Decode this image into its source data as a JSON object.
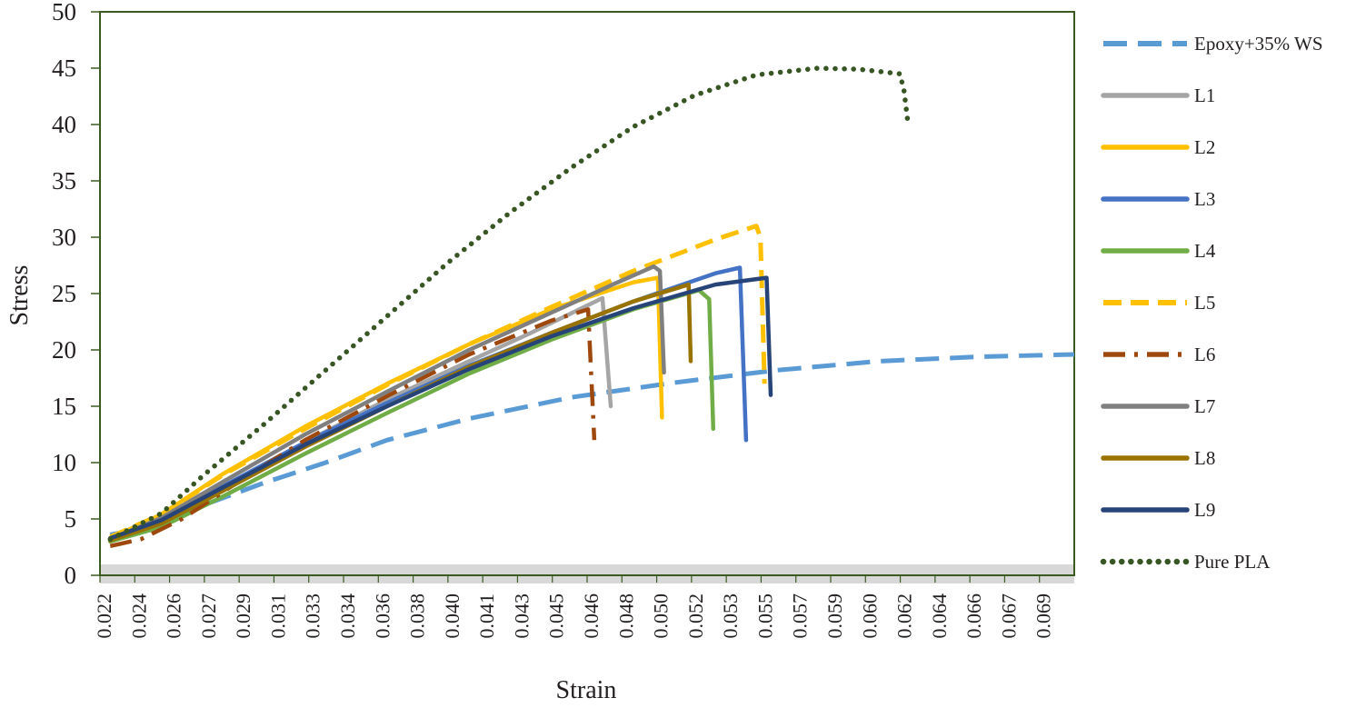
{
  "chart_data": {
    "type": "line",
    "title": "",
    "xlabel": "Strain",
    "ylabel": "Stress",
    "xlim": [
      0.022,
      0.0695
    ],
    "ylim": [
      0,
      50
    ],
    "y_ticks": [
      "0",
      "5",
      "10",
      "15",
      "20",
      "25",
      "30",
      "35",
      "40",
      "45",
      "50"
    ],
    "x_ticks": [
      "0.022",
      "0.024",
      "0.026",
      "0.027",
      "0.029",
      "0.031",
      "0.033",
      "0.034",
      "0.036",
      "0.038",
      "0.040",
      "0.041",
      "0.043",
      "0.045",
      "0.046",
      "0.048",
      "0.050",
      "0.052",
      "0.053",
      "0.055",
      "0.057",
      "0.059",
      "0.060",
      "0.062",
      "0.064",
      "0.066",
      "0.067",
      "0.069"
    ],
    "grid": false,
    "legend_position": "right",
    "colors": {
      "frame": "#3a5a1f",
      "baseline_band": "#d8d8d8",
      "text": "#231f20"
    },
    "series": [
      {
        "name": "Epoxy+35% WS",
        "color": "#5b9bd5",
        "style": "long-dash",
        "points": [
          [
            0.0225,
            3.6
          ],
          [
            0.025,
            4.5
          ],
          [
            0.027,
            6.2
          ],
          [
            0.03,
            8.2
          ],
          [
            0.033,
            10.0
          ],
          [
            0.036,
            12.0
          ],
          [
            0.04,
            13.9
          ],
          [
            0.045,
            15.8
          ],
          [
            0.05,
            17.1
          ],
          [
            0.055,
            18.2
          ],
          [
            0.06,
            19.0
          ],
          [
            0.065,
            19.4
          ],
          [
            0.0695,
            19.6
          ]
        ]
      },
      {
        "name": "L1",
        "color": "#a5a5a5",
        "style": "solid",
        "points": [
          [
            0.0225,
            3.2
          ],
          [
            0.025,
            4.8
          ],
          [
            0.028,
            7.8
          ],
          [
            0.032,
            11.8
          ],
          [
            0.036,
            15.6
          ],
          [
            0.04,
            19.0
          ],
          [
            0.043,
            21.5
          ],
          [
            0.0465,
            24.6
          ],
          [
            0.0469,
            15.0
          ]
        ]
      },
      {
        "name": "L2",
        "color": "#ffc000",
        "style": "solid",
        "points": [
          [
            0.0225,
            3.3
          ],
          [
            0.025,
            5.4
          ],
          [
            0.028,
            9.0
          ],
          [
            0.032,
            13.2
          ],
          [
            0.036,
            17.0
          ],
          [
            0.04,
            20.5
          ],
          [
            0.044,
            23.6
          ],
          [
            0.048,
            26.0
          ],
          [
            0.0492,
            26.4
          ],
          [
            0.0494,
            14.0
          ]
        ]
      },
      {
        "name": "L3",
        "color": "#4472c4",
        "style": "solid",
        "points": [
          [
            0.0225,
            3.3
          ],
          [
            0.025,
            4.9
          ],
          [
            0.028,
            7.9
          ],
          [
            0.032,
            11.8
          ],
          [
            0.036,
            15.3
          ],
          [
            0.04,
            18.6
          ],
          [
            0.044,
            21.5
          ],
          [
            0.048,
            24.3
          ],
          [
            0.052,
            26.8
          ],
          [
            0.0532,
            27.3
          ],
          [
            0.0535,
            12.0
          ]
        ]
      },
      {
        "name": "L4",
        "color": "#70ad47",
        "style": "solid",
        "points": [
          [
            0.0225,
            3.0
          ],
          [
            0.025,
            4.3
          ],
          [
            0.028,
            7.0
          ],
          [
            0.032,
            10.8
          ],
          [
            0.036,
            14.4
          ],
          [
            0.04,
            17.9
          ],
          [
            0.044,
            20.9
          ],
          [
            0.048,
            23.6
          ],
          [
            0.0512,
            25.3
          ],
          [
            0.0517,
            24.5
          ],
          [
            0.0519,
            13.0
          ]
        ]
      },
      {
        "name": "L5",
        "color": "#ffc000",
        "style": "dash",
        "points": [
          [
            0.0225,
            3.4
          ],
          [
            0.025,
            5.4
          ],
          [
            0.028,
            8.9
          ],
          [
            0.032,
            13.0
          ],
          [
            0.036,
            16.9
          ],
          [
            0.04,
            20.5
          ],
          [
            0.044,
            23.8
          ],
          [
            0.048,
            27.0
          ],
          [
            0.052,
            29.8
          ],
          [
            0.054,
            31.0
          ],
          [
            0.0542,
            30.0
          ],
          [
            0.0544,
            17.0
          ]
        ]
      },
      {
        "name": "L6",
        "color": "#9e480e",
        "style": "dash-dot",
        "points": [
          [
            0.0225,
            2.6
          ],
          [
            0.024,
            3.2
          ],
          [
            0.026,
            5.0
          ],
          [
            0.029,
            8.6
          ],
          [
            0.032,
            12.0
          ],
          [
            0.036,
            15.9
          ],
          [
            0.04,
            19.6
          ],
          [
            0.044,
            22.6
          ],
          [
            0.0458,
            23.6
          ],
          [
            0.0461,
            12.0
          ]
        ]
      },
      {
        "name": "L7",
        "color": "#7f7f7f",
        "style": "solid",
        "points": [
          [
            0.0225,
            3.2
          ],
          [
            0.025,
            5.1
          ],
          [
            0.028,
            8.3
          ],
          [
            0.032,
            12.5
          ],
          [
            0.036,
            16.3
          ],
          [
            0.04,
            20.0
          ],
          [
            0.044,
            23.3
          ],
          [
            0.047,
            25.8
          ],
          [
            0.049,
            27.4
          ],
          [
            0.0493,
            27.0
          ],
          [
            0.0495,
            18.0
          ]
        ]
      },
      {
        "name": "L8",
        "color": "#997300",
        "style": "solid",
        "points": [
          [
            0.0225,
            3.1
          ],
          [
            0.025,
            4.6
          ],
          [
            0.028,
            7.5
          ],
          [
            0.032,
            11.4
          ],
          [
            0.036,
            15.0
          ],
          [
            0.04,
            18.5
          ],
          [
            0.044,
            21.5
          ],
          [
            0.048,
            24.3
          ],
          [
            0.0507,
            25.8
          ],
          [
            0.0508,
            19.0
          ]
        ]
      },
      {
        "name": "L9",
        "color": "#264478",
        "style": "solid",
        "points": [
          [
            0.0225,
            3.3
          ],
          [
            0.025,
            4.9
          ],
          [
            0.028,
            7.8
          ],
          [
            0.032,
            11.6
          ],
          [
            0.036,
            15.0
          ],
          [
            0.04,
            18.3
          ],
          [
            0.044,
            21.2
          ],
          [
            0.048,
            23.7
          ],
          [
            0.052,
            25.8
          ],
          [
            0.0545,
            26.4
          ],
          [
            0.0547,
            16.0
          ]
        ]
      },
      {
        "name": "Pure PLA",
        "color": "#375623",
        "style": "dot",
        "points": [
          [
            0.0225,
            3.2
          ],
          [
            0.025,
            5.5
          ],
          [
            0.027,
            8.8
          ],
          [
            0.03,
            13.4
          ],
          [
            0.033,
            18.2
          ],
          [
            0.036,
            23.0
          ],
          [
            0.039,
            27.8
          ],
          [
            0.042,
            32.2
          ],
          [
            0.045,
            36.2
          ],
          [
            0.048,
            39.8
          ],
          [
            0.051,
            42.6
          ],
          [
            0.054,
            44.4
          ],
          [
            0.057,
            45.0
          ],
          [
            0.059,
            44.9
          ],
          [
            0.061,
            44.5
          ],
          [
            0.0612,
            43.0
          ],
          [
            0.0614,
            40.0
          ]
        ]
      }
    ]
  }
}
